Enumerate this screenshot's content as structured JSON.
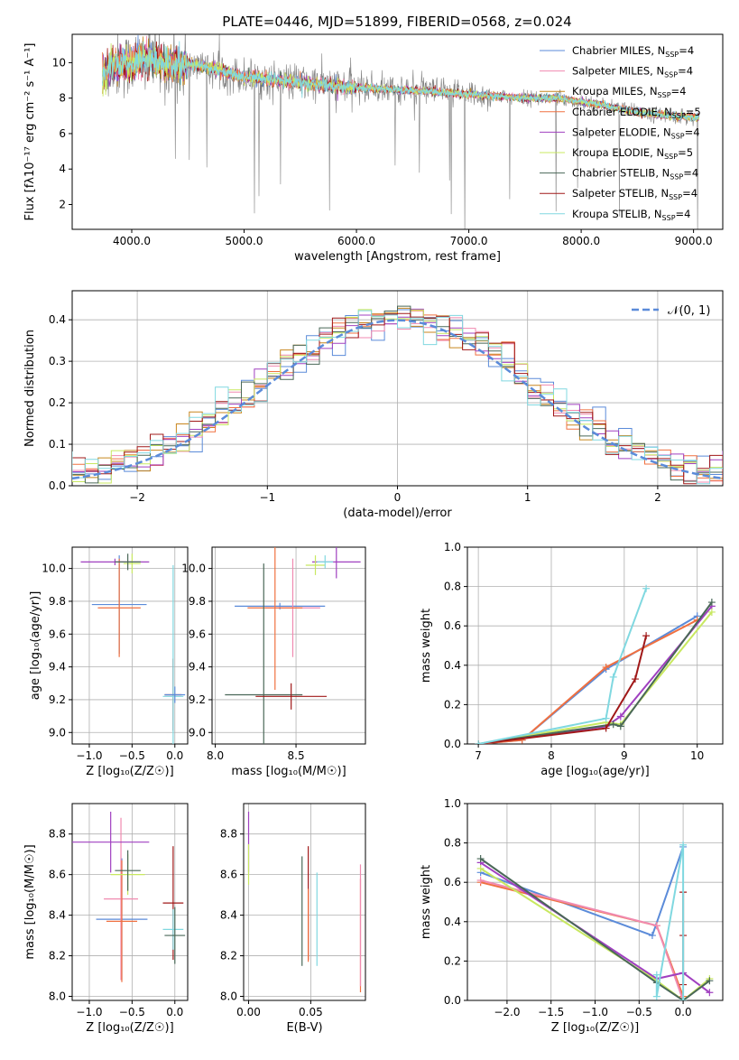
{
  "title": "PLATE=0446, MJD=51899, FIBERID=0568, z=0.024",
  "models": [
    {
      "label": "Chabrier MILES, N",
      "sub": "SSP",
      "tail": "=4",
      "color": "#5b8bd9"
    },
    {
      "label": "Salpeter MILES, N",
      "sub": "SSP",
      "tail": "=4",
      "color": "#f08ab0"
    },
    {
      "label": "Kroupa MILES, N",
      "sub": "SSP",
      "tail": "=4",
      "color": "#c8861e"
    },
    {
      "label": "Chabrier ELODIE, N",
      "sub": "SSP",
      "tail": "=5",
      "color": "#f07040"
    },
    {
      "label": "Salpeter ELODIE, N",
      "sub": "SSP",
      "tail": "=4",
      "color": "#a040c0"
    },
    {
      "label": "Kroupa ELODIE, N",
      "sub": "SSP",
      "tail": "=5",
      "color": "#c8e860"
    },
    {
      "label": "Chabrier STELIB, N",
      "sub": "SSP",
      "tail": "=4",
      "color": "#4a6858"
    },
    {
      "label": "Salpeter STELIB, N",
      "sub": "SSP",
      "tail": "=4",
      "color": "#a01818"
    },
    {
      "label": "Kroupa STELIB, N",
      "sub": "SSP",
      "tail": "=4",
      "color": "#80d8e0"
    }
  ],
  "chart_data": [
    {
      "type": "line",
      "id": "spectrum",
      "xlabel": "wavelength [Angstrom, rest frame]",
      "ylabel": "Flux [fλ10⁻¹⁷ erg cm⁻² s⁻¹ A⁻¹]",
      "xlim": [
        3470,
        9260
      ],
      "ylim": [
        0.6,
        11.6
      ],
      "xticks": [
        4000,
        5000,
        6000,
        7000,
        8000,
        9000
      ],
      "yticks": [
        2,
        4,
        6,
        8,
        10
      ],
      "data_color": "#808080",
      "continuum": [
        [
          3740,
          9.1
        ],
        [
          3800,
          9.7
        ],
        [
          3900,
          9.9
        ],
        [
          4000,
          9.9
        ],
        [
          4100,
          10.2
        ],
        [
          4300,
          9.9
        ],
        [
          4500,
          9.9
        ],
        [
          4700,
          9.7
        ],
        [
          5000,
          9.2
        ],
        [
          5300,
          9.0
        ],
        [
          5600,
          8.8
        ],
        [
          6000,
          8.6
        ],
        [
          6300,
          8.5
        ],
        [
          6600,
          8.4
        ],
        [
          7000,
          8.2
        ],
        [
          7500,
          8.0
        ],
        [
          7800,
          8.0
        ],
        [
          8200,
          7.6
        ],
        [
          8500,
          7.2
        ],
        [
          8800,
          7.0
        ],
        [
          9050,
          6.9
        ]
      ]
    },
    {
      "type": "step",
      "id": "residuals",
      "xlabel": "(data-model)/error",
      "ylabel": "Normed distribution",
      "xlim": [
        -2.5,
        2.5
      ],
      "ylim": [
        0,
        0.47
      ],
      "xticks": [
        -2,
        -1,
        0,
        1,
        2
      ],
      "yticks": [
        0.0,
        0.1,
        0.2,
        0.3,
        0.4
      ],
      "bin_width": 0.1,
      "legend": "𝒩(0, 1)",
      "normal_color": "#5b8bd9"
    },
    {
      "type": "scatter",
      "id": "age-vs-Z",
      "xlabel": "Z [log₁₀(Z/Z☉)]",
      "ylabel": "age  [log₁₀(age/yr)]",
      "xlim": [
        -1.2,
        0.15
      ],
      "ylim": [
        8.93,
        10.13
      ],
      "xticks": [
        -1.0,
        -0.5,
        0.0
      ],
      "yticks": [
        9.0,
        9.2,
        9.4,
        9.6,
        9.8,
        10.0
      ],
      "points": [
        {
          "x": -0.65,
          "y": 9.78,
          "xerr": 0.32,
          "yerr": 0.3,
          "c": 0
        },
        {
          "x": -0.65,
          "y": 9.76,
          "xerr": 0.25,
          "yerr": 0.3,
          "c": 3
        },
        {
          "x": -0.7,
          "y": 10.04,
          "xerr": 0.4,
          "yerr": 0.02,
          "c": 4
        },
        {
          "x": -0.5,
          "y": 10.03,
          "xerr": 0.1,
          "yerr": 0.06,
          "c": 5
        },
        {
          "x": -0.55,
          "y": 10.04,
          "xerr": 0.15,
          "yerr": 0.05,
          "c": 6
        },
        {
          "x": -0.02,
          "y": 9.23,
          "xerr": 0.1,
          "yerr": 0.22,
          "c": 7
        },
        {
          "x": -0.02,
          "y": 9.22,
          "xerr": 0.12,
          "yerr": 0.8,
          "c": 8
        },
        {
          "x": 0.0,
          "y": 9.23,
          "xerr": 0.12,
          "yerr": 0.05,
          "c": 0
        }
      ]
    },
    {
      "type": "scatter",
      "id": "age-vs-mass",
      "xlabel": "mass [log₁₀(M/M☉)]",
      "ylabel": "",
      "xlim": [
        7.98,
        8.93
      ],
      "ylim": [
        8.93,
        10.13
      ],
      "xticks": [
        8.0,
        8.5
      ],
      "yticks": [
        9.0,
        9.2,
        9.4,
        9.6,
        9.8,
        10.0
      ],
      "points": [
        {
          "x": 8.4,
          "y": 9.77,
          "xerr": 0.28,
          "yerr": 0.02,
          "c": 0
        },
        {
          "x": 8.48,
          "y": 9.76,
          "xerr": 0.17,
          "yerr": 0.3,
          "c": 1
        },
        {
          "x": 8.37,
          "y": 9.76,
          "xerr": 0.17,
          "yerr": 0.5,
          "c": 3
        },
        {
          "x": 8.3,
          "y": 9.23,
          "xerr": 0.24,
          "yerr": 0.8,
          "c": 6
        },
        {
          "x": 8.47,
          "y": 9.22,
          "xerr": 0.22,
          "yerr": 0.08,
          "c": 7
        },
        {
          "x": 8.75,
          "y": 10.04,
          "xerr": 0.15,
          "yerr": 0.1,
          "c": 4
        },
        {
          "x": 8.62,
          "y": 10.02,
          "xerr": 0.06,
          "yerr": 0.06,
          "c": 5
        },
        {
          "x": 8.68,
          "y": 10.04,
          "xerr": 0.05,
          "yerr": 0.04,
          "c": 8
        }
      ]
    },
    {
      "type": "line",
      "id": "weight-vs-age",
      "xlabel": "age  [log₁₀(age/yr)]",
      "ylabel": "mass weight",
      "xlim": [
        6.85,
        10.35
      ],
      "ylim": [
        0.0,
        1.0
      ],
      "xticks": [
        7,
        8,
        9,
        10
      ],
      "yticks": [
        0.0,
        0.2,
        0.4,
        0.6,
        0.8,
        1.0
      ],
      "series": [
        {
          "c": 0,
          "x": [
            7.0,
            7.6,
            8.75,
            10.0
          ],
          "y": [
            0.0,
            0.02,
            0.38,
            0.65
          ]
        },
        {
          "c": 3,
          "x": [
            7.0,
            7.6,
            8.75,
            10.0
          ],
          "y": [
            0.0,
            0.02,
            0.39,
            0.63
          ]
        },
        {
          "c": 4,
          "x": [
            7.0,
            8.75,
            8.95,
            10.2
          ],
          "y": [
            0.0,
            0.09,
            0.14,
            0.7
          ]
        },
        {
          "c": 5,
          "x": [
            7.0,
            8.75,
            8.95,
            10.2
          ],
          "y": [
            0.0,
            0.11,
            0.1,
            0.67
          ]
        },
        {
          "c": 6,
          "x": [
            7.0,
            8.85,
            8.95,
            10.2
          ],
          "y": [
            0.0,
            0.1,
            0.09,
            0.72
          ]
        },
        {
          "c": 7,
          "x": [
            7.0,
            8.75,
            9.15,
            9.3
          ],
          "y": [
            0.0,
            0.08,
            0.33,
            0.55
          ]
        },
        {
          "c": 8,
          "x": [
            7.0,
            8.75,
            8.85,
            9.3
          ],
          "y": [
            0.0,
            0.13,
            0.34,
            0.79
          ]
        }
      ]
    },
    {
      "type": "scatter",
      "id": "mass-vs-Z",
      "xlabel": "Z [log₁₀(Z/Z☉)]",
      "ylabel": "mass [log₁₀(M/M☉)]",
      "xlim": [
        -1.2,
        0.15
      ],
      "ylim": [
        7.98,
        8.95
      ],
      "xticks": [
        -1.0,
        -0.5,
        0.0
      ],
      "yticks": [
        8.0,
        8.2,
        8.4,
        8.6,
        8.8
      ],
      "points": [
        {
          "x": -0.62,
          "y": 8.38,
          "xerr": 0.3,
          "yerr": 0.3,
          "c": 0
        },
        {
          "x": -0.63,
          "y": 8.48,
          "xerr": 0.2,
          "yerr": 0.4,
          "c": 1
        },
        {
          "x": -0.62,
          "y": 8.37,
          "xerr": 0.18,
          "yerr": 0.3,
          "c": 3
        },
        {
          "x": -0.75,
          "y": 8.76,
          "xerr": 0.45,
          "yerr": 0.15,
          "c": 4
        },
        {
          "x": -0.55,
          "y": 8.6,
          "xerr": 0.2,
          "yerr": 0.1,
          "c": 5
        },
        {
          "x": -0.55,
          "y": 8.62,
          "xerr": 0.15,
          "yerr": 0.1,
          "c": 6
        },
        {
          "x": -0.02,
          "y": 8.46,
          "xerr": 0.12,
          "yerr": 0.28,
          "c": 7
        },
        {
          "x": -0.02,
          "y": 8.33,
          "xerr": 0.12,
          "yerr": 0.1,
          "c": 8
        },
        {
          "x": 0.0,
          "y": 8.3,
          "xerr": 0.12,
          "yerr": 0.14,
          "c": 6
        }
      ]
    },
    {
      "type": "scatter",
      "id": "mass-vs-EBV",
      "xlabel": "E(B-V)",
      "ylabel": "",
      "xlim": [
        -0.004,
        0.094
      ],
      "ylim": [
        7.98,
        8.95
      ],
      "xticks": [
        0.0,
        0.05
      ],
      "yticks": [
        8.0,
        8.2,
        8.4,
        8.6,
        8.8
      ],
      "points": [
        {
          "x": 0.0,
          "y": 8.76,
          "yerr": 0.15,
          "c": 4
        },
        {
          "x": 0.0,
          "y": 8.65,
          "yerr": 0.1,
          "c": 5
        },
        {
          "x": 0.043,
          "y": 8.42,
          "yerr": 0.27,
          "c": 6
        },
        {
          "x": 0.048,
          "y": 8.46,
          "yerr": 0.28,
          "c": 7
        },
        {
          "x": 0.048,
          "y": 8.35,
          "yerr": 0.18,
          "c": 3
        },
        {
          "x": 0.055,
          "y": 8.38,
          "yerr": 0.23,
          "c": 8
        },
        {
          "x": 0.09,
          "y": 8.3,
          "yerr": 0.28,
          "c": 3
        },
        {
          "x": 0.09,
          "y": 8.35,
          "yerr": 0.3,
          "c": 1
        }
      ]
    },
    {
      "type": "line",
      "id": "weight-vs-Z",
      "xlabel": "Z [log₁₀(Z/Z☉)]",
      "ylabel": "mass weight",
      "xlim": [
        -2.45,
        0.45
      ],
      "ylim": [
        0.0,
        1.0
      ],
      "xticks": [
        -2.0,
        -1.5,
        -1.0,
        -0.5,
        0.0
      ],
      "yticks": [
        0.0,
        0.2,
        0.4,
        0.6,
        0.8,
        1.0
      ],
      "series": [
        {
          "c": 0,
          "x": [
            -2.3,
            -0.35,
            0.0
          ],
          "y": [
            0.65,
            0.33,
            0.78
          ]
        },
        {
          "c": 3,
          "x": [
            -2.3,
            -0.3,
            0.0
          ],
          "y": [
            0.6,
            0.38,
            0.02
          ]
        },
        {
          "c": 1,
          "x": [
            -2.3,
            -0.3,
            0.0
          ],
          "y": [
            0.61,
            0.38,
            0.0
          ]
        },
        {
          "c": 4,
          "x": [
            -2.3,
            -0.3,
            0.0,
            0.3
          ],
          "y": [
            0.7,
            0.11,
            0.14,
            0.04
          ]
        },
        {
          "c": 5,
          "x": [
            -2.3,
            -0.3,
            0.0,
            0.3
          ],
          "y": [
            0.67,
            0.1,
            0.0,
            0.11
          ]
        },
        {
          "c": 6,
          "x": [
            -2.3,
            -0.3,
            0.0,
            0.3
          ],
          "y": [
            0.72,
            0.09,
            0.0,
            0.1
          ]
        },
        {
          "c": 7,
          "x": [
            0.0,
            0.0,
            0.0
          ],
          "y": [
            0.55,
            0.33,
            0.08
          ]
        },
        {
          "c": 8,
          "x": [
            -0.3,
            -0.3,
            0.0,
            0.0
          ],
          "y": [
            0.13,
            0.02,
            0.79,
            0.0
          ]
        }
      ]
    }
  ]
}
